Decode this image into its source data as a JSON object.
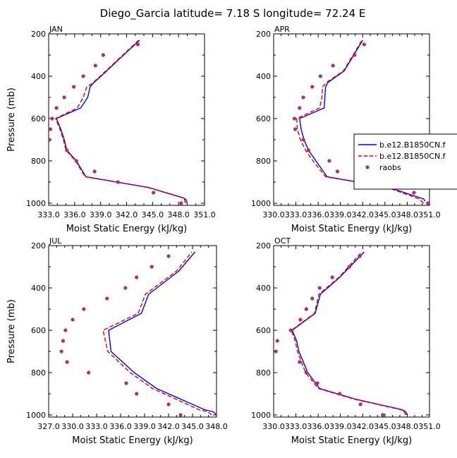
{
  "figure": {
    "title": "Diego_Garcia   latitude= 7.18 S longitude= 72.24 E"
  },
  "legend": {
    "entries": [
      {
        "label": "b.e12.B1850CN.f",
        "color": "#0000ee",
        "style": "solid"
      },
      {
        "label": "b.e12.B1850CN.f",
        "color": "#dd0000",
        "style": "dashed"
      },
      {
        "label": "raobs",
        "color": "#b03060",
        "style": "marker"
      }
    ]
  },
  "chart_data": [
    {
      "type": "line",
      "panel_label": "JAN",
      "xlabel": "Moist Static Energy (kJ/kg)",
      "ylabel": "Pressure (mb)",
      "xlim": [
        333.0,
        351.0
      ],
      "ylim": [
        1010,
        200
      ],
      "x_ticks": [
        "333.0",
        "336.0",
        "339.0",
        "342.0",
        "345.0",
        "348.0",
        "351.0"
      ],
      "y_ticks": [
        "200",
        "400",
        "600",
        "800",
        "1000"
      ],
      "series": [
        {
          "color": "#0000ee",
          "dash": "solid",
          "points": [
            [
              349.0,
              1000
            ],
            [
              348.9,
              985
            ],
            [
              348.6,
              975
            ],
            [
              344.5,
              925
            ],
            [
              337.3,
              875
            ],
            [
              336.2,
              800
            ],
            [
              335.1,
              750
            ],
            [
              334.8,
              700
            ],
            [
              334.4,
              650
            ],
            [
              333.9,
              600
            ],
            [
              336.7,
              550
            ],
            [
              337.5,
              500
            ],
            [
              337.8,
              450
            ],
            [
              338.1,
              435
            ],
            [
              339.7,
              375
            ],
            [
              341.0,
              325
            ],
            [
              343.5,
              230
            ]
          ]
        },
        {
          "color": "#dd0000",
          "dash": "dashed",
          "points": [
            [
              348.8,
              1000
            ],
            [
              348.7,
              985
            ],
            [
              348.5,
              975
            ],
            [
              344.4,
              925
            ],
            [
              337.2,
              875
            ],
            [
              336.1,
              800
            ],
            [
              335.0,
              750
            ],
            [
              334.7,
              700
            ],
            [
              334.3,
              650
            ],
            [
              333.8,
              600
            ],
            [
              336.3,
              550
            ],
            [
              337.0,
              500
            ],
            [
              337.4,
              450
            ],
            [
              338.0,
              435
            ],
            [
              339.6,
              375
            ],
            [
              340.9,
              325
            ],
            [
              343.4,
              230
            ]
          ]
        },
        {
          "color": "#b03060",
          "dash": "marker",
          "points": [
            [
              348.3,
              1000
            ],
            [
              345.1,
              950
            ],
            [
              341.0,
              900
            ],
            [
              338.3,
              850
            ],
            [
              336.2,
              800
            ],
            [
              335.1,
              750
            ],
            [
              333.1,
              700
            ],
            [
              333.2,
              650
            ],
            [
              333.4,
              600
            ],
            [
              333.9,
              550
            ],
            [
              334.8,
              500
            ],
            [
              335.9,
              450
            ],
            [
              337.0,
              400
            ],
            [
              338.4,
              350
            ],
            [
              339.3,
              300
            ],
            [
              343.3,
              250
            ]
          ]
        }
      ]
    },
    {
      "type": "line",
      "panel_label": "APR",
      "xlabel": "Moist Static Energy (kJ/kg)",
      "ylabel": "",
      "xlim": [
        330.0,
        351.0
      ],
      "ylim": [
        1010,
        200
      ],
      "x_ticks": [
        "330.0",
        "333.0",
        "336.0",
        "339.0",
        "342.0",
        "345.0",
        "348.0",
        "351.0"
      ],
      "y_ticks": [
        "200",
        "400",
        "600",
        "800",
        "1000"
      ],
      "series": [
        {
          "color": "#0000ee",
          "dash": "solid",
          "points": [
            [
              350.4,
              990
            ],
            [
              350.2,
              980
            ],
            [
              345.5,
              925
            ],
            [
              337.2,
              875
            ],
            [
              335.7,
              800
            ],
            [
              334.7,
              750
            ],
            [
              334.1,
              700
            ],
            [
              333.7,
              650
            ],
            [
              333.5,
              600
            ],
            [
              336.8,
              550
            ],
            [
              336.9,
              500
            ],
            [
              337.0,
              450
            ],
            [
              337.3,
              430
            ],
            [
              339.5,
              375
            ],
            [
              342.0,
              230
            ]
          ]
        },
        {
          "color": "#dd0000",
          "dash": "dashed",
          "points": [
            [
              350.2,
              1000
            ],
            [
              349.6,
              980
            ],
            [
              345.3,
              925
            ],
            [
              337.0,
              875
            ],
            [
              335.3,
              800
            ],
            [
              334.3,
              750
            ],
            [
              333.6,
              700
            ],
            [
              333.2,
              650
            ],
            [
              333.1,
              600
            ],
            [
              336.2,
              550
            ],
            [
              336.5,
              500
            ],
            [
              336.6,
              450
            ],
            [
              337.1,
              430
            ],
            [
              339.4,
              375
            ],
            [
              341.9,
              230
            ]
          ]
        },
        {
          "color": "#b03060",
          "dash": "marker",
          "points": [
            [
              350.8,
              1000
            ],
            [
              348.9,
              950
            ],
            [
              342.2,
              900
            ],
            [
              338.6,
              850
            ],
            [
              337.5,
              800
            ],
            [
              334.7,
              750
            ],
            [
              334.0,
              700
            ],
            [
              332.9,
              650
            ],
            [
              332.8,
              600
            ],
            [
              333.5,
              550
            ],
            [
              334.0,
              500
            ],
            [
              335.2,
              450
            ],
            [
              336.3,
              400
            ],
            [
              338.0,
              350
            ],
            [
              340.9,
              300
            ],
            [
              342.2,
              250
            ]
          ]
        }
      ]
    },
    {
      "type": "line",
      "panel_label": "JUL",
      "xlabel": "Moist Static Energy (kJ/kg)",
      "ylabel": "Pressure (mb)",
      "xlim": [
        327.0,
        348.0
      ],
      "ylim": [
        1010,
        200
      ],
      "x_ticks": [
        "327.0",
        "330.0",
        "333.0",
        "336.0",
        "339.0",
        "342.0",
        "345.0",
        "348.0"
      ],
      "y_ticks": [
        "200",
        "400",
        "600",
        "800",
        "1000"
      ],
      "series": [
        {
          "color": "#0000ee",
          "dash": "solid",
          "points": [
            [
              348.0,
              1000
            ],
            [
              347.6,
              985
            ],
            [
              346.5,
              975
            ],
            [
              340.5,
              875
            ],
            [
              337.7,
              800
            ],
            [
              334.8,
              700
            ],
            [
              334.5,
              600
            ],
            [
              338.6,
              520
            ],
            [
              339.5,
              430
            ],
            [
              343.3,
              320
            ],
            [
              345.3,
              230
            ]
          ]
        },
        {
          "color": "#dd0000",
          "dash": "dashed",
          "points": [
            [
              347.4,
              1000
            ],
            [
              346.9,
              985
            ],
            [
              345.8,
              975
            ],
            [
              340.0,
              875
            ],
            [
              337.2,
              800
            ],
            [
              334.4,
              700
            ],
            [
              333.8,
              600
            ],
            [
              338.2,
              520
            ],
            [
              339.1,
              430
            ],
            [
              343.0,
              320
            ],
            [
              344.9,
              230
            ]
          ]
        },
        {
          "color": "#b03060",
          "dash": "marker",
          "points": [
            [
              343.5,
              1000
            ],
            [
              342.0,
              950
            ],
            [
              338.0,
              900
            ],
            [
              336.7,
              850
            ],
            [
              332.0,
              800
            ],
            [
              329.3,
              750
            ],
            [
              328.6,
              700
            ],
            [
              328.8,
              650
            ],
            [
              329.1,
              600
            ],
            [
              330.0,
              550
            ],
            [
              331.4,
              500
            ],
            [
              334.3,
              450
            ],
            [
              336.6,
              400
            ],
            [
              338.0,
              350
            ],
            [
              339.9,
              300
            ],
            [
              342.0,
              250
            ]
          ]
        }
      ]
    },
    {
      "type": "line",
      "panel_label": "OCT",
      "xlabel": "Moist Static Energy (kJ/kg)",
      "ylabel": "",
      "xlim": [
        330.0,
        351.0
      ],
      "ylim": [
        1010,
        200
      ],
      "x_ticks": [
        "330.0",
        "333.0",
        "336.0",
        "339.0",
        "342.0",
        "345.0",
        "348.0",
        "351.0"
      ],
      "y_ticks": [
        "200",
        "400",
        "600",
        "800",
        "1000"
      ],
      "series": [
        {
          "color": "#0000ee",
          "dash": "solid",
          "points": [
            [
              348.0,
              1000
            ],
            [
              347.8,
              985
            ],
            [
              347.3,
              975
            ],
            [
              341.0,
              925
            ],
            [
              336.2,
              875
            ],
            [
              334.6,
              800
            ],
            [
              333.4,
              700
            ],
            [
              333.1,
              650
            ],
            [
              332.5,
              600
            ],
            [
              335.6,
              520
            ],
            [
              336.3,
              430
            ],
            [
              338.9,
              350
            ],
            [
              342.2,
              230
            ]
          ]
        },
        {
          "color": "#dd0000",
          "dash": "dashed",
          "points": [
            [
              347.8,
              1000
            ],
            [
              347.6,
              985
            ],
            [
              347.1,
              975
            ],
            [
              340.8,
              925
            ],
            [
              336.0,
              875
            ],
            [
              334.3,
              800
            ],
            [
              333.2,
              700
            ],
            [
              332.9,
              650
            ],
            [
              332.4,
              600
            ],
            [
              335.5,
              520
            ],
            [
              336.1,
              430
            ],
            [
              338.8,
              350
            ],
            [
              341.9,
              230
            ]
          ]
        },
        {
          "color": "#b03060",
          "dash": "marker",
          "points": [
            [
              344.7,
              1000
            ],
            [
              341.7,
              950
            ],
            [
              338.9,
              900
            ],
            [
              335.9,
              850
            ],
            [
              334.4,
              800
            ],
            [
              333.5,
              750
            ],
            [
              330.3,
              700
            ],
            [
              330.5,
              650
            ],
            [
              332.3,
              600
            ],
            [
              333.6,
              550
            ],
            [
              334.4,
              500
            ],
            [
              335.2,
              450
            ],
            [
              336.2,
              400
            ],
            [
              337.9,
              350
            ],
            [
              340.2,
              300
            ],
            [
              341.6,
              250
            ]
          ]
        }
      ]
    }
  ]
}
